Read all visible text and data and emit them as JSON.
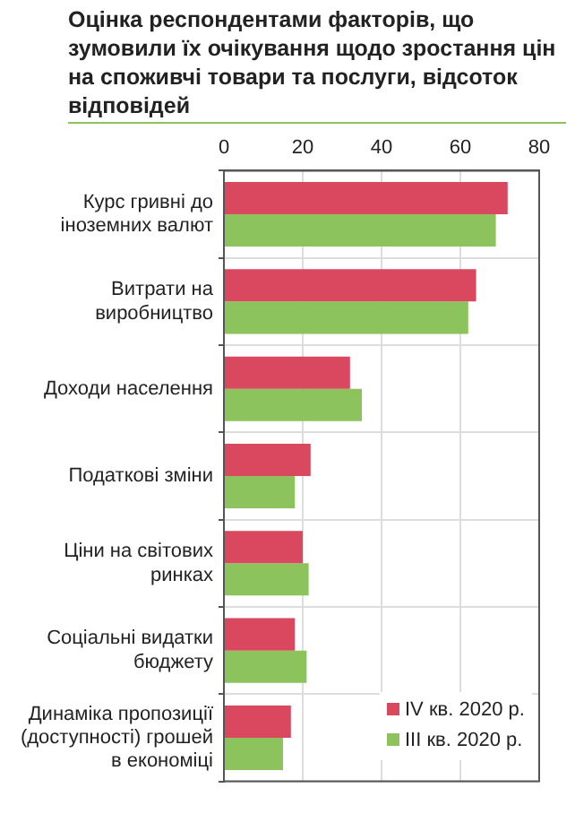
{
  "chart_data": {
    "type": "bar",
    "orientation": "horizontal",
    "title": "Оцінка респондентами факторів, що зумовили їх очікування щодо зростання цін на споживчі товари та послуги, відсоток відповідей",
    "categories": [
      "Курс гривні до іноземних валют",
      "Витрати на виробництво",
      "Доходи населення",
      "Податкові зміни",
      "Ціни на світових ринках",
      "Соціальні видатки бюджету",
      "Динаміка пропозиції (доступності) грошей в економіці"
    ],
    "series": [
      {
        "name": "IV кв. 2020 р.",
        "color": "#d9485f",
        "values": [
          72,
          64,
          32,
          22,
          20,
          18,
          17
        ]
      },
      {
        "name": "III кв. 2020 р.",
        "color": "#8dc35c",
        "values": [
          69,
          62,
          35,
          18,
          21.5,
          21,
          15
        ]
      }
    ],
    "xlim": [
      0,
      80
    ],
    "xticks": [
      0,
      20,
      40,
      60,
      80
    ],
    "grid": true,
    "legend": "bottom right"
  }
}
